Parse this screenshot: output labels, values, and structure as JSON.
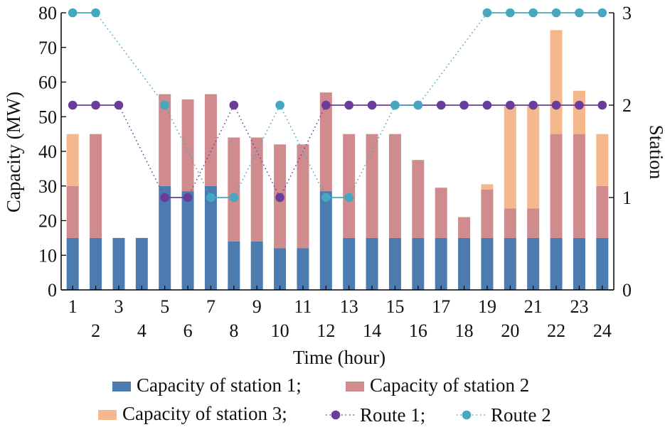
{
  "chart_data": {
    "type": "bar",
    "stacked": true,
    "xlabel": "Time (hour)",
    "ylabel": "Capacity (MW)",
    "y2label": "Station",
    "ylim": [
      0,
      80
    ],
    "y2lim": [
      0,
      3
    ],
    "yticks": [
      0,
      10,
      20,
      30,
      40,
      50,
      60,
      70,
      80
    ],
    "y2ticks": [
      0,
      1,
      2,
      3
    ],
    "categories": [
      "1",
      "2",
      "3",
      "4",
      "5",
      "6",
      "7",
      "8",
      "9",
      "10",
      "11",
      "12",
      "13",
      "14",
      "15",
      "16",
      "17",
      "18",
      "19",
      "20",
      "21",
      "22",
      "23",
      "24"
    ],
    "series": [
      {
        "name": "Capacity of station 1;",
        "kind": "bar",
        "color": "#4c7bb0",
        "values": [
          15,
          15,
          15,
          15,
          30,
          28.5,
          30,
          14,
          14,
          12,
          12,
          28.5,
          15,
          15,
          15,
          15,
          15,
          15,
          15,
          15,
          15,
          15,
          15,
          15
        ]
      },
      {
        "name": "Capacity of station 2",
        "kind": "bar",
        "color": "#cf8b8d",
        "values": [
          15,
          30,
          0,
          0,
          26.5,
          26.5,
          26.5,
          30,
          30,
          30,
          30,
          28.5,
          30,
          30,
          30,
          22.5,
          14.5,
          6,
          14,
          8.5,
          8.5,
          30,
          30,
          15
        ]
      },
      {
        "name": "Capacity of station 3;",
        "kind": "bar",
        "color": "#f5b88c",
        "values": [
          15,
          0,
          0,
          0,
          0,
          0,
          0,
          0,
          0,
          0,
          0,
          0,
          0,
          0,
          0,
          0,
          0,
          0,
          1.5,
          30,
          30,
          30,
          12.5,
          15
        ]
      },
      {
        "name": "Route 1;",
        "kind": "line",
        "axis": "right",
        "color": "#6a3d9a",
        "values": [
          2,
          2,
          2,
          null,
          1,
          1,
          null,
          2,
          null,
          1,
          null,
          2,
          2,
          2,
          2,
          2,
          2,
          2,
          2,
          2,
          2,
          2,
          2,
          2
        ]
      },
      {
        "name": "Route 2",
        "kind": "line",
        "axis": "right",
        "color": "#46a8c0",
        "values": [
          3,
          3,
          null,
          null,
          2,
          null,
          1,
          1,
          null,
          2,
          null,
          1,
          1,
          null,
          2,
          2,
          null,
          null,
          3,
          3,
          3,
          3,
          3,
          3
        ]
      }
    ],
    "legend": "bottom"
  }
}
